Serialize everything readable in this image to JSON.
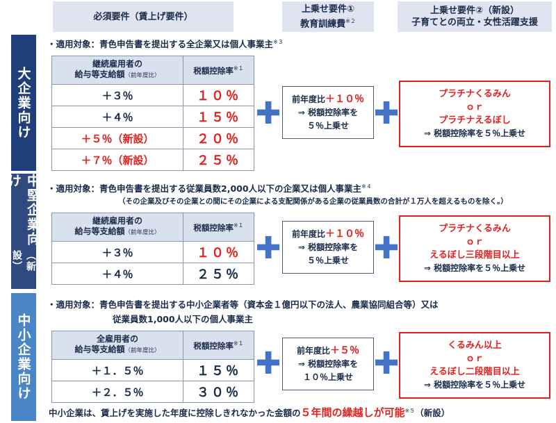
{
  "headers": {
    "col1": "必須要件（賃上げ要件）",
    "col2_line1": "上乗せ要件①",
    "col2_line2": "教育訓練費",
    "col2_note": "※２",
    "col3_line1": "上乗せ要件②（新設）",
    "col3_line2": "子育てとの両立・女性活躍支援"
  },
  "large": {
    "side_label": "大企業向け",
    "target": "・適用対象：青色申告書を提出する全企業又は個人事業主",
    "target_note": "※３",
    "table_header_l1": "継続雇用者の",
    "table_header_l2": "給与等支給額",
    "table_header_small": "（前年度比）",
    "table_header_rate": "税額控除率",
    "table_header_rate_note": "※１",
    "rows": [
      {
        "inc": "＋３％",
        "rate": "１０％"
      },
      {
        "inc": "＋４％",
        "rate": "１５％"
      },
      {
        "inc": "＋５％（新設）",
        "rate": "２０％"
      },
      {
        "inc": "＋７％（新設）",
        "rate": "２５％"
      }
    ],
    "box1_l1a": "前年度比",
    "box1_l1b": "＋１０％",
    "box1_l2": "⇒ 税額控除率を",
    "box1_l3": "５％上乗せ",
    "box2_l1": "プラチナくるみん",
    "box2_l2": "ｏｒ",
    "box2_l3": "プラチナえるぼし",
    "box2_l4": "⇒ 税額控除率を５％上乗せ"
  },
  "mid": {
    "side_label_a": "中堅企業向け",
    "side_label_b": "（新設）",
    "target": "・適用対象：青色申告書を提出する従業員数2,000人以下の企業又は個人事業主",
    "target_note": "※４",
    "subnote": "（その企業及びその企業との間にその企業による支配関係がある企業の従業員数の合計が１万人を超えるものを除く。）",
    "table_header_l1": "継続雇用者の",
    "table_header_l2": "給与等支給額",
    "table_header_small": "（前年度比）",
    "table_header_rate": "税額控除率",
    "table_header_rate_note": "※１",
    "rows": [
      {
        "inc": "＋３％",
        "rate": "１０％"
      },
      {
        "inc": "＋４％",
        "rate": "２５％"
      }
    ],
    "box1_l1a": "前年度比",
    "box1_l1b": "＋１０％",
    "box1_l2": "⇒ 税額控除率を",
    "box1_l3": "５％上乗せ",
    "box2_l1": "プラチナくるみん",
    "box2_l2": "ｏｒ",
    "box2_l3": "えるぼし三段階目以上",
    "box2_l4": "⇒ 税額控除率を５％上乗せ"
  },
  "small": {
    "side_label": "中小企業向け",
    "target_l1": "・適用対象：青色申告書を提出する中小企業者等（資本金１億円以下の法人、農業協同組合等）又は",
    "target_l2": "従業員数1,000人以下の個人事業主",
    "table_header_l1": "全雇用者の",
    "table_header_l2": "給与等支給額",
    "table_header_small": "（前年度比）",
    "table_header_rate": "税額控除率",
    "table_header_rate_note": "※１",
    "rows": [
      {
        "inc": "＋１．５％",
        "rate": "１５％"
      },
      {
        "inc": "＋２．５％",
        "rate": "３０％"
      }
    ],
    "box1_l1a": "前年度比",
    "box1_l1b": "＋５％",
    "box1_l2": "⇒ 税額控除率を",
    "box1_l3": "１０％上乗せ",
    "box2_l1": "くるみん以上",
    "box2_l2": "ｏｒ",
    "box2_l3": "えるぼし二段階目以上",
    "box2_l4": "⇒ 税額控除率を５％上乗せ",
    "bottom_a": "中小企業は、賃上げを実施した年度に控除しきれなかった金額の",
    "bottom_big": "５年間の繰越しが可能",
    "bottom_note": "※５",
    "bottom_new": "（新設）"
  },
  "colors": {
    "navy": "#1a2b4a",
    "large_band": "#1f3f7a",
    "mid_band": "#2e4a7e",
    "small_band": "#4a86c5",
    "red": "#e1201f",
    "plus": "#4472c4",
    "header_bg": "#dfe4f0"
  },
  "plus_symbol": "✚"
}
